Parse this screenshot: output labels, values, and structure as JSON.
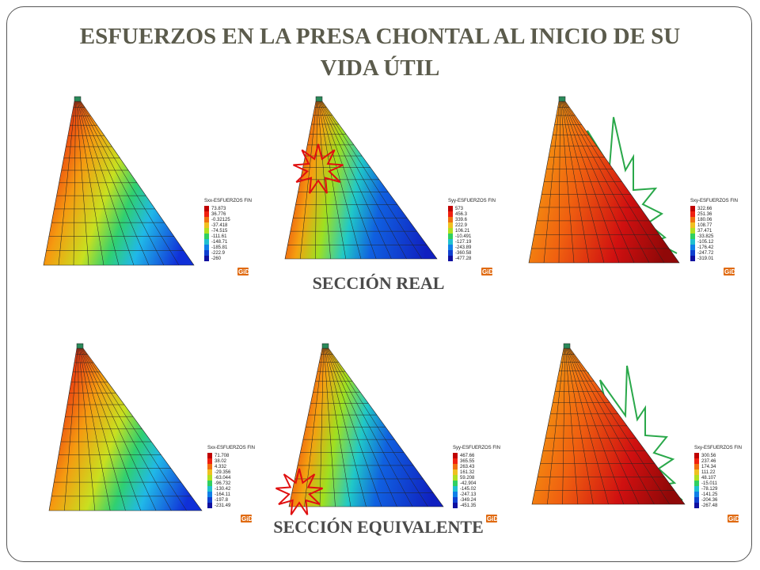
{
  "title": "ESFUERZOS EN LA PRESA CHONTAL AL INICIO DE SU VIDA ÚTIL",
  "sections": [
    {
      "label": "SECCIÓN REAL",
      "panels": [
        {
          "legend_title": "Sxx-ESFUERZOS FIN",
          "legend_values": [
            "73.873",
            "36.776",
            "-0.32125",
            "-37.418",
            "-74.515",
            "-111.61",
            "-148.71",
            "-185.81",
            "-222.9",
            "-260"
          ],
          "logo": "GiD"
        },
        {
          "legend_title": "Syy-ESFUERZOS FIN",
          "legend_values": [
            "573",
            "456.3",
            "339.6",
            "222.9",
            "106.21",
            "-10.491",
            "-127.19",
            "-243.89",
            "-360.58",
            "-477.28"
          ],
          "logo": "GiD"
        },
        {
          "legend_title": "Sxy-ESFUERZOS FIN",
          "legend_values": [
            "322.66",
            "251.36",
            "180.06",
            "108.77",
            "37.471",
            "-33.825",
            "-105.12",
            "-176.42",
            "-247.72",
            "-319.01"
          ],
          "logo": "GiD"
        }
      ]
    },
    {
      "label": "SECCIÓN EQUIVALENTE",
      "panels": [
        {
          "legend_title": "Sxx-ESFUERZOS FIN",
          "legend_values": [
            "71.708",
            "38.02",
            "4.332",
            "-29.356",
            "-63.044",
            "-96.732",
            "-130.42",
            "-164.11",
            "-197.8",
            "-231.49"
          ],
          "logo": "GiD"
        },
        {
          "legend_title": "Syy-ESFUERZOS FIN",
          "legend_values": [
            "467.66",
            "365.55",
            "263.43",
            "161.32",
            "59.208",
            "-42.904",
            "-145.02",
            "-247.13",
            "-349.24",
            "-451.35"
          ],
          "logo": "GiD"
        },
        {
          "legend_title": "Sxy-ESFUERZOS FIN",
          "legend_values": [
            "300.56",
            "237.46",
            "174.34",
            "111.22",
            "48.107",
            "-15.011",
            "-78.129",
            "-141.25",
            "-204.36",
            "-267.48"
          ],
          "logo": "GiD"
        }
      ]
    }
  ]
}
